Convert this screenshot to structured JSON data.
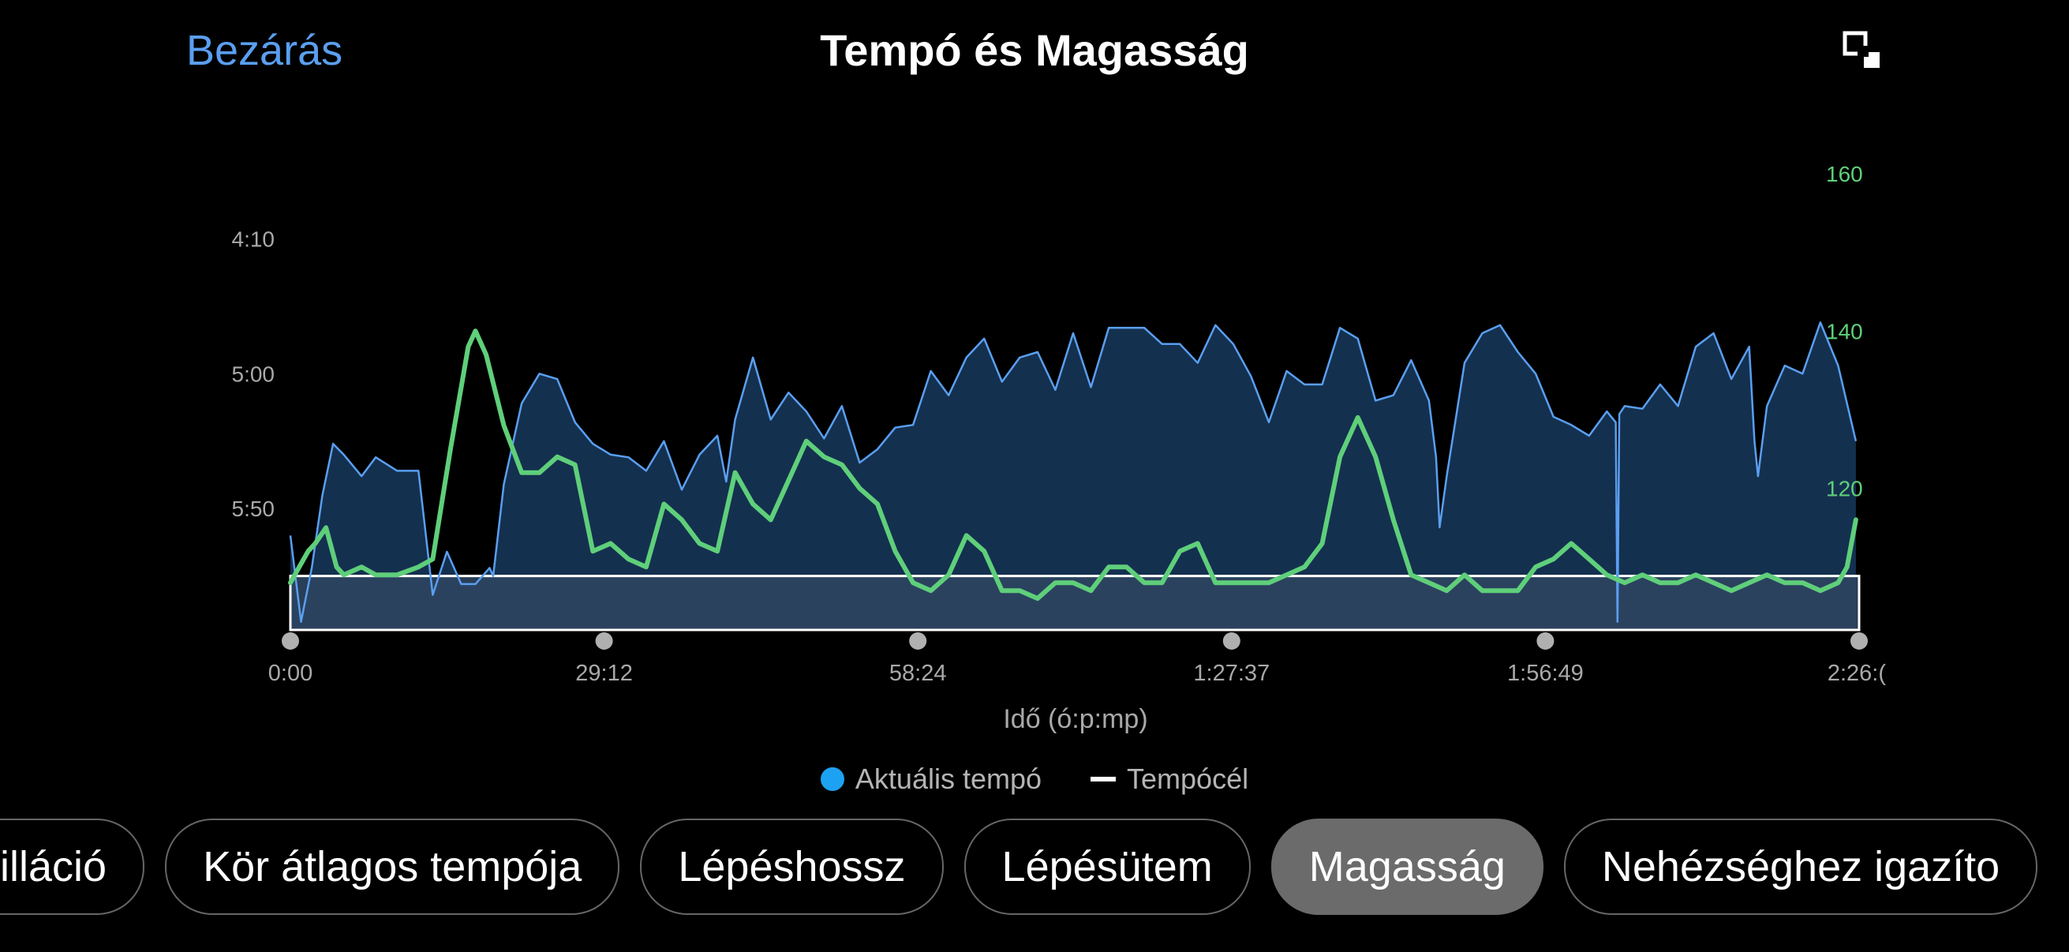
{
  "header": {
    "close_label": "Bezárás",
    "title": "Tempó és Magasság",
    "expand_icon": "expand-icon"
  },
  "colors": {
    "background": "#000000",
    "pace_fill": "#14304f",
    "pace_line": "#5a9ff0",
    "elevation_line": "#5fcf7a",
    "target_band": "#2e4560",
    "target_line": "#ffffff",
    "close_link": "#5a9ff0"
  },
  "tabs": [
    {
      "label": "cilláció",
      "active": false
    },
    {
      "label": "Kör átlagos tempója",
      "active": false
    },
    {
      "label": "Lépéshossz",
      "active": false
    },
    {
      "label": "Lépésütem",
      "active": false
    },
    {
      "label": "Magasság",
      "active": true
    },
    {
      "label": "Nehézséghez igazíto",
      "active": false
    }
  ],
  "chart_data": {
    "type": "line",
    "xlabel": "Idő (ó:p:mp)",
    "x_ticks": [
      "0:00",
      "29:12",
      "58:24",
      "1:27:37",
      "1:56:49",
      "2:26:("
    ],
    "x_range_seconds": [
      0,
      8818
    ],
    "left_axis": {
      "ticks": [
        "4:10",
        "5:00",
        "5:50"
      ],
      "tick_seconds_per_km": [
        250,
        300,
        350
      ],
      "range_seconds_per_km": [
        220,
        395
      ],
      "inverted": true
    },
    "right_axis": {
      "ticks": [
        "160",
        "140",
        "120"
      ],
      "range": [
        102,
        162
      ],
      "color": "#5fcf7a"
    },
    "pace_target_seconds_per_km": 375,
    "legend": {
      "position": "bottom-center",
      "items": [
        "Aktuális tempó",
        "Tempócél"
      ]
    },
    "series": [
      {
        "name": "Aktuális tempó",
        "axis": "left",
        "x": [
          0,
          60,
          120,
          180,
          240,
          300,
          400,
          480,
          600,
          720,
          800,
          880,
          960,
          1040,
          1120,
          1140,
          1200,
          1300,
          1400,
          1500,
          1600,
          1700,
          1800,
          1900,
          2000,
          2100,
          2200,
          2300,
          2400,
          2450,
          2500,
          2600,
          2700,
          2800,
          2900,
          3000,
          3100,
          3200,
          3300,
          3400,
          3500,
          3600,
          3700,
          3800,
          3900,
          4000,
          4100,
          4200,
          4300,
          4400,
          4500,
          4600,
          4700,
          4800,
          4900,
          5000,
          5100,
          5200,
          5300,
          5400,
          5500,
          5600,
          5700,
          5800,
          5900,
          6000,
          6100,
          6200,
          6300,
          6400,
          6440,
          6460,
          6500,
          6600,
          6700,
          6800,
          6900,
          7000,
          7100,
          7200,
          7300,
          7400,
          7450,
          7460,
          7470,
          7500,
          7600,
          7700,
          7800,
          7900,
          8000,
          8100,
          8200,
          8230,
          8250,
          8300,
          8400,
          8500,
          8600,
          8700,
          8800
        ],
        "y": [
          360,
          392,
          372,
          345,
          326,
          330,
          338,
          331,
          336,
          336,
          382,
          366,
          378,
          378,
          372,
          375,
          341,
          311,
          300,
          302,
          318,
          326,
          330,
          331,
          336,
          325,
          343,
          330,
          323,
          340,
          317,
          294,
          317,
          307,
          314,
          324,
          312,
          333,
          328,
          320,
          319,
          299,
          308,
          294,
          287,
          303,
          294,
          292,
          306,
          285,
          305,
          283,
          283,
          283,
          289,
          289,
          296,
          282,
          289,
          301,
          318,
          299,
          304,
          304,
          283,
          287,
          310,
          308,
          295,
          310,
          331,
          357,
          338,
          296,
          285,
          282,
          292,
          300,
          316,
          319,
          323,
          314,
          318,
          392,
          315,
          312,
          313,
          304,
          312,
          290,
          285,
          302,
          290,
          325,
          338,
          312,
          297,
          300,
          281,
          297,
          325
        ]
      },
      {
        "name": "Magasság",
        "axis": "right",
        "x": [
          0,
          100,
          140,
          200,
          260,
          300,
          400,
          480,
          600,
          720,
          800,
          900,
          1000,
          1040,
          1060,
          1100,
          1200,
          1300,
          1400,
          1500,
          1600,
          1700,
          1800,
          1900,
          2000,
          2100,
          2200,
          2300,
          2400,
          2500,
          2600,
          2700,
          2800,
          2900,
          3000,
          3100,
          3200,
          3300,
          3400,
          3500,
          3600,
          3700,
          3800,
          3900,
          4000,
          4100,
          4200,
          4300,
          4400,
          4500,
          4600,
          4700,
          4800,
          4900,
          5000,
          5100,
          5200,
          5300,
          5400,
          5500,
          5600,
          5700,
          5800,
          5900,
          6000,
          6100,
          6200,
          6300,
          6400,
          6500,
          6600,
          6700,
          6800,
          6900,
          7000,
          7100,
          7200,
          7300,
          7400,
          7500,
          7600,
          7700,
          7800,
          7900,
          8000,
          8100,
          8200,
          8300,
          8400,
          8500,
          8600,
          8700,
          8750,
          8800
        ],
        "y": [
          108,
          112,
          113,
          115,
          110,
          109,
          110,
          109,
          109,
          110,
          111,
          125,
          138,
          140,
          139,
          137,
          128,
          122,
          122,
          124,
          123,
          112,
          113,
          111,
          110,
          118,
          116,
          113,
          112,
          122,
          118,
          116,
          121,
          126,
          124,
          123,
          120,
          118,
          112,
          108,
          107,
          109,
          114,
          112,
          107,
          107,
          106,
          108,
          108,
          107,
          110,
          110,
          108,
          108,
          112,
          113,
          108,
          108,
          108,
          108,
          109,
          110,
          113,
          124,
          129,
          124,
          116,
          109,
          108,
          107,
          109,
          107,
          107,
          107,
          110,
          111,
          113,
          111,
          109,
          108,
          109,
          108,
          108,
          109,
          108,
          107,
          108,
          109,
          108,
          108,
          107,
          108,
          110,
          116
        ]
      },
      {
        "name": "Tempócél",
        "axis": "left",
        "x": [
          0,
          8818
        ],
        "y": [
          375,
          375
        ]
      }
    ]
  }
}
